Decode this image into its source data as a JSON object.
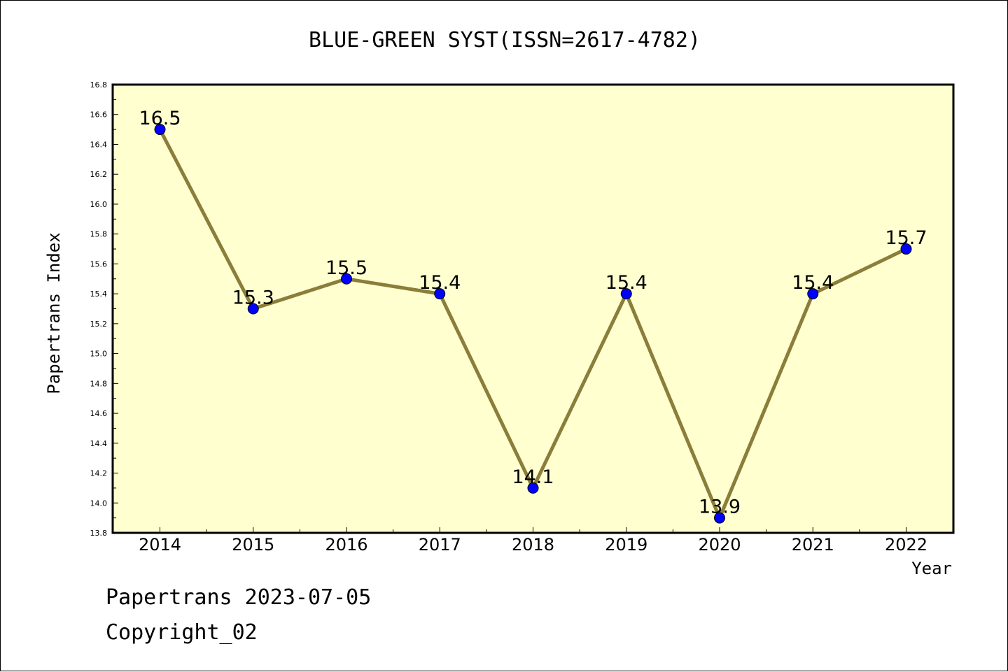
{
  "chart_data": {
    "type": "line",
    "title": "BLUE-GREEN SYST(ISSN=2617-4782)",
    "xlabel": "Year",
    "ylabel": "Papertrans Index",
    "x": [
      "2014",
      "2015",
      "2016",
      "2017",
      "2018",
      "2019",
      "2020",
      "2021",
      "2022"
    ],
    "series": [
      {
        "values": [
          16.5,
          15.3,
          15.5,
          15.4,
          14.1,
          15.4,
          13.9,
          15.4,
          15.7
        ],
        "labels": [
          "16.5",
          "15.3",
          "15.5",
          "15.4",
          "14.1",
          "15.4",
          "13.9",
          "15.4",
          "15.7"
        ]
      }
    ],
    "ylim": [
      13.8,
      16.8
    ],
    "yticks": [
      "13.8",
      "14.0",
      "14.2",
      "14.4",
      "14.6",
      "14.8",
      "15.0",
      "15.2",
      "15.4",
      "15.6",
      "15.8",
      "16.0",
      "16.2",
      "16.4",
      "16.6",
      "16.8"
    ],
    "grid": false,
    "legend": "none",
    "colors": {
      "line": "#8B7D3A",
      "marker": "#0000FF",
      "plot_background": "#FFFFD0"
    }
  },
  "footer": {
    "date_line": "Papertrans 2023-07-05",
    "copyright_line": "Copyright_02"
  }
}
